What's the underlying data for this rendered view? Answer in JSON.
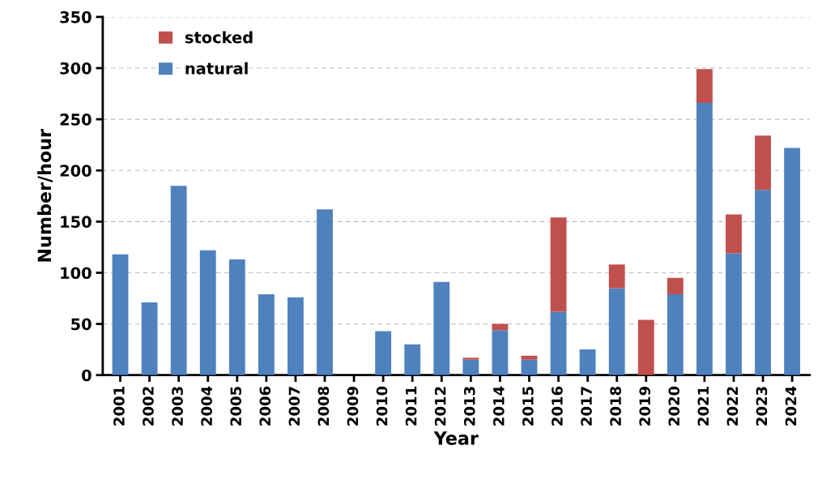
{
  "chart_data": {
    "type": "bar",
    "stacked": true,
    "xlabel": "Year",
    "ylabel": "Number/hour",
    "categories": [
      "2001",
      "2002",
      "2003",
      "2004",
      "2005",
      "2006",
      "2007",
      "2008",
      "2009",
      "2010",
      "2011",
      "2012",
      "2013",
      "2014",
      "2015",
      "2016",
      "2017",
      "2018",
      "2019",
      "2020",
      "2021",
      "2022",
      "2023",
      "2024"
    ],
    "series": [
      {
        "name": "natural",
        "color": "#4f81bd",
        "values": [
          118,
          71,
          185,
          122,
          113,
          79,
          76,
          162,
          0,
          43,
          30,
          91,
          15,
          44,
          15,
          62,
          25,
          85,
          0,
          79,
          266,
          119,
          181,
          222
        ]
      },
      {
        "name": "stocked",
        "color": "#c0504d",
        "values": [
          0,
          0,
          0,
          0,
          0,
          0,
          0,
          0,
          0,
          0,
          0,
          0,
          2,
          6,
          4,
          92,
          0,
          23,
          54,
          16,
          33,
          38,
          53,
          0
        ]
      }
    ],
    "ylim": [
      0,
      350
    ],
    "yticks": [
      0,
      50,
      100,
      150,
      200,
      250,
      300,
      350
    ],
    "grid": "y",
    "legend": "top left"
  }
}
